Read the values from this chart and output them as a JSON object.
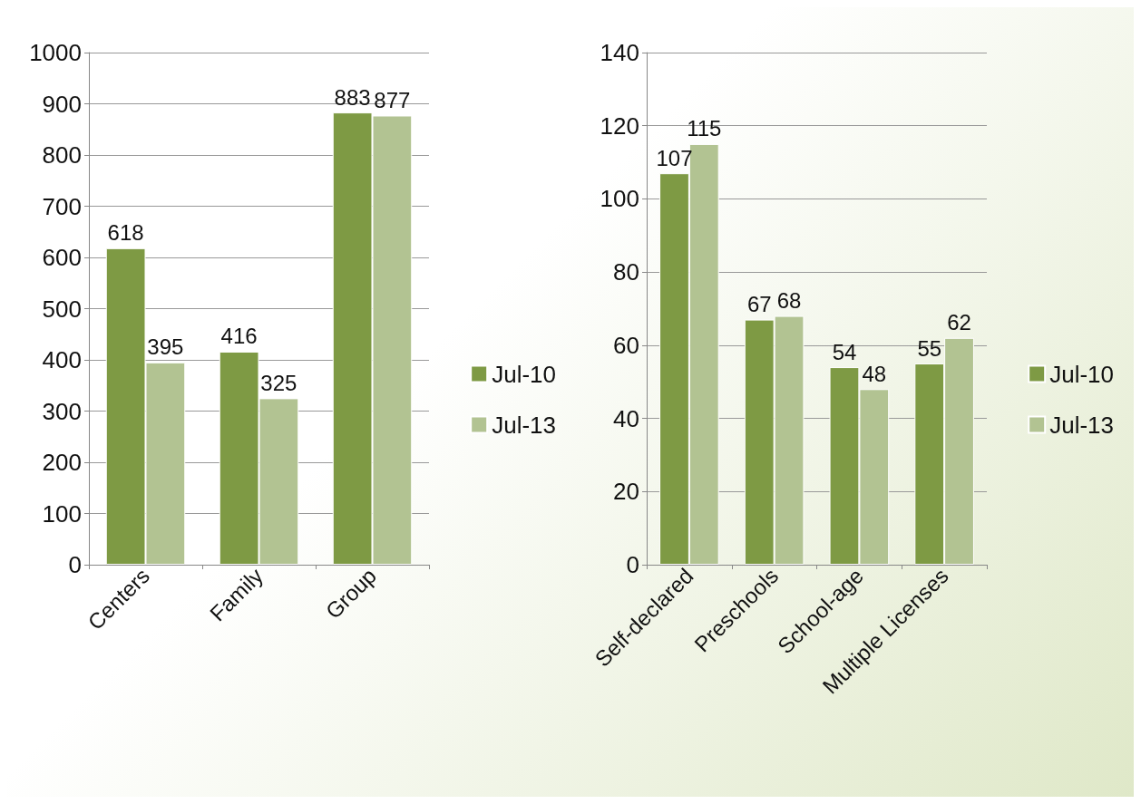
{
  "chart_data": [
    {
      "type": "bar",
      "categories": [
        "Centers",
        "Family",
        "Group"
      ],
      "series": [
        {
          "name": "Jul-10",
          "color": "#7e9a44",
          "values": [
            618,
            416,
            883
          ]
        },
        {
          "name": "Jul-13",
          "color": "#b2c392",
          "values": [
            395,
            325,
            877
          ]
        }
      ],
      "ylim": [
        0,
        1000
      ],
      "yticks": [
        0,
        100,
        200,
        300,
        400,
        500,
        600,
        700,
        800,
        900,
        1000
      ],
      "grid": "y",
      "legend": "right",
      "data_labels": true
    },
    {
      "type": "bar",
      "categories": [
        "Self-declared",
        "Preschools",
        "School-age",
        "Multiple Licenses"
      ],
      "series": [
        {
          "name": "Jul-10",
          "color": "#7e9a44",
          "values": [
            107,
            67,
            54,
            55
          ]
        },
        {
          "name": "Jul-13",
          "color": "#b2c392",
          "values": [
            115,
            68,
            48,
            62
          ]
        }
      ],
      "ylim": [
        0,
        140
      ],
      "yticks": [
        0,
        20,
        40,
        60,
        80,
        100,
        120,
        140
      ],
      "grid": "y",
      "legend": "right",
      "data_labels": true
    }
  ]
}
